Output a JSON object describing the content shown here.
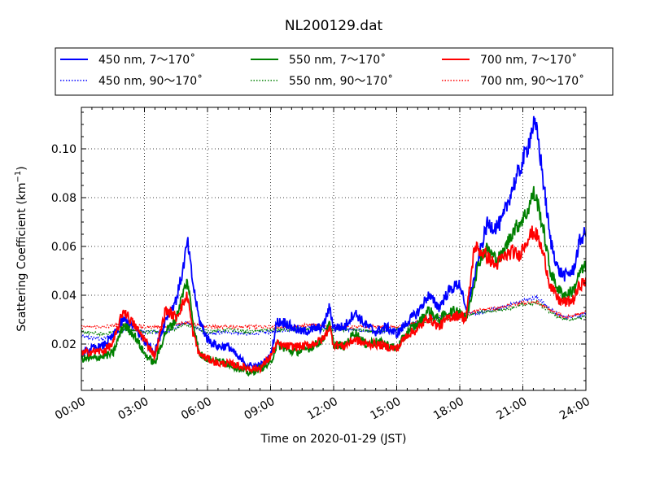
{
  "chart_data": {
    "type": "line",
    "title": "NL200129.dat",
    "xlabel": "Time on 2020-01-29 (JST)",
    "ylabel": "Scattering Coefficient (km",
    "ylabel_sup": "−1",
    "ylabel_close": ")",
    "xlim": [
      0,
      24
    ],
    "ylim": [
      0.001,
      0.117
    ],
    "x_ticks": [
      0,
      3,
      6,
      9,
      12,
      15,
      18,
      21,
      24
    ],
    "x_tick_labels": [
      "00:00",
      "03:00",
      "06:00",
      "09:00",
      "12:00",
      "15:00",
      "18:00",
      "21:00",
      "24:00"
    ],
    "y_ticks": [
      0.02,
      0.04,
      0.06,
      0.08,
      0.1
    ],
    "y_tick_labels": [
      "0.02",
      "0.04",
      "0.06",
      "0.08",
      "0.10"
    ],
    "grid": true,
    "legend_position": "top",
    "series": [
      {
        "name": "450 nm, 7～170˚",
        "color": "#0000ff",
        "style": "solid",
        "points": [
          [
            0,
            0.016
          ],
          [
            0.5,
            0.018
          ],
          [
            1,
            0.019
          ],
          [
            1.5,
            0.023
          ],
          [
            2,
            0.03
          ],
          [
            2.5,
            0.027
          ],
          [
            3,
            0.021
          ],
          [
            3.5,
            0.017
          ],
          [
            4,
            0.03
          ],
          [
            4.5,
            0.038
          ],
          [
            4.8,
            0.049
          ],
          [
            5.05,
            0.062
          ],
          [
            5.3,
            0.045
          ],
          [
            5.6,
            0.03
          ],
          [
            6,
            0.022
          ],
          [
            6.5,
            0.019
          ],
          [
            7,
            0.019
          ],
          [
            7.5,
            0.014
          ],
          [
            8,
            0.011
          ],
          [
            8.5,
            0.011
          ],
          [
            9,
            0.015
          ],
          [
            9.3,
            0.029
          ],
          [
            9.7,
            0.029
          ],
          [
            10,
            0.027
          ],
          [
            10.5,
            0.025
          ],
          [
            11,
            0.026
          ],
          [
            11.5,
            0.027
          ],
          [
            11.8,
            0.035
          ],
          [
            12,
            0.027
          ],
          [
            12.5,
            0.027
          ],
          [
            13,
            0.033
          ],
          [
            13.5,
            0.028
          ],
          [
            14,
            0.025
          ],
          [
            14.5,
            0.027
          ],
          [
            15,
            0.024
          ],
          [
            15.5,
            0.029
          ],
          [
            16,
            0.033
          ],
          [
            16.5,
            0.04
          ],
          [
            17,
            0.035
          ],
          [
            17.5,
            0.042
          ],
          [
            18,
            0.045
          ],
          [
            18.3,
            0.033
          ],
          [
            18.7,
            0.047
          ],
          [
            19,
            0.059
          ],
          [
            19.3,
            0.069
          ],
          [
            19.7,
            0.068
          ],
          [
            20,
            0.07
          ],
          [
            20.5,
            0.084
          ],
          [
            20.8,
            0.09
          ],
          [
            21.2,
            0.1
          ],
          [
            21.5,
            0.11
          ],
          [
            21.7,
            0.106
          ],
          [
            22,
            0.085
          ],
          [
            22.3,
            0.063
          ],
          [
            22.7,
            0.05
          ],
          [
            23,
            0.048
          ],
          [
            23.4,
            0.05
          ],
          [
            23.7,
            0.062
          ],
          [
            24,
            0.066
          ]
        ]
      },
      {
        "name": "450 nm, 90～170˚",
        "color": "#0000ff",
        "style": "dotted",
        "points": [
          [
            0,
            0.023
          ],
          [
            1,
            0.022
          ],
          [
            2,
            0.026
          ],
          [
            3,
            0.025
          ],
          [
            4,
            0.025
          ],
          [
            5,
            0.029
          ],
          [
            6,
            0.024
          ],
          [
            7,
            0.025
          ],
          [
            8,
            0.024
          ],
          [
            9,
            0.025
          ],
          [
            10,
            0.026
          ],
          [
            11,
            0.027
          ],
          [
            12,
            0.026
          ],
          [
            13,
            0.026
          ],
          [
            14,
            0.025
          ],
          [
            15,
            0.026
          ],
          [
            16,
            0.029
          ],
          [
            17,
            0.031
          ],
          [
            18,
            0.032
          ],
          [
            19,
            0.033
          ],
          [
            20,
            0.035
          ],
          [
            21,
            0.038
          ],
          [
            21.7,
            0.039
          ],
          [
            22.5,
            0.033
          ],
          [
            23,
            0.031
          ],
          [
            24,
            0.032
          ]
        ]
      },
      {
        "name": "550 nm, 7～170˚",
        "color": "#008000",
        "style": "solid",
        "points": [
          [
            0,
            0.014
          ],
          [
            0.5,
            0.014
          ],
          [
            1,
            0.015
          ],
          [
            1.5,
            0.016
          ],
          [
            2,
            0.028
          ],
          [
            2.5,
            0.024
          ],
          [
            3,
            0.016
          ],
          [
            3.5,
            0.012
          ],
          [
            4,
            0.025
          ],
          [
            4.5,
            0.03
          ],
          [
            4.8,
            0.04
          ],
          [
            5.05,
            0.046
          ],
          [
            5.3,
            0.03
          ],
          [
            5.6,
            0.016
          ],
          [
            6,
            0.014
          ],
          [
            6.5,
            0.013
          ],
          [
            7,
            0.012
          ],
          [
            7.5,
            0.01
          ],
          [
            8,
            0.008
          ],
          [
            8.5,
            0.01
          ],
          [
            9,
            0.012
          ],
          [
            9.3,
            0.02
          ],
          [
            9.7,
            0.018
          ],
          [
            10,
            0.017
          ],
          [
            10.5,
            0.017
          ],
          [
            11,
            0.019
          ],
          [
            11.5,
            0.022
          ],
          [
            11.8,
            0.028
          ],
          [
            12,
            0.02
          ],
          [
            12.5,
            0.019
          ],
          [
            13,
            0.025
          ],
          [
            13.5,
            0.02
          ],
          [
            14,
            0.021
          ],
          [
            14.5,
            0.02
          ],
          [
            15,
            0.018
          ],
          [
            15.5,
            0.025
          ],
          [
            16,
            0.028
          ],
          [
            16.5,
            0.034
          ],
          [
            17,
            0.03
          ],
          [
            17.5,
            0.033
          ],
          [
            18,
            0.034
          ],
          [
            18.3,
            0.03
          ],
          [
            18.7,
            0.046
          ],
          [
            19,
            0.056
          ],
          [
            19.3,
            0.059
          ],
          [
            19.7,
            0.055
          ],
          [
            20,
            0.056
          ],
          [
            20.5,
            0.066
          ],
          [
            20.8,
            0.069
          ],
          [
            21.2,
            0.074
          ],
          [
            21.5,
            0.082
          ],
          [
            21.7,
            0.078
          ],
          [
            22,
            0.066
          ],
          [
            22.3,
            0.05
          ],
          [
            22.7,
            0.042
          ],
          [
            23,
            0.04
          ],
          [
            23.4,
            0.042
          ],
          [
            23.7,
            0.049
          ],
          [
            24,
            0.052
          ]
        ]
      },
      {
        "name": "550 nm, 90～170˚",
        "color": "#008000",
        "style": "dotted",
        "points": [
          [
            0,
            0.025
          ],
          [
            1,
            0.024
          ],
          [
            2,
            0.026
          ],
          [
            3,
            0.025
          ],
          [
            4,
            0.025
          ],
          [
            5,
            0.028
          ],
          [
            6,
            0.025
          ],
          [
            7,
            0.026
          ],
          [
            8,
            0.025
          ],
          [
            9,
            0.026
          ],
          [
            10,
            0.026
          ],
          [
            11,
            0.026
          ],
          [
            12,
            0.026
          ],
          [
            13,
            0.026
          ],
          [
            14,
            0.025
          ],
          [
            15,
            0.026
          ],
          [
            16,
            0.029
          ],
          [
            17,
            0.03
          ],
          [
            18,
            0.031
          ],
          [
            19,
            0.033
          ],
          [
            20,
            0.034
          ],
          [
            21,
            0.036
          ],
          [
            21.7,
            0.037
          ],
          [
            22.5,
            0.032
          ],
          [
            23,
            0.03
          ],
          [
            24,
            0.031
          ]
        ]
      },
      {
        "name": "700 nm, 7～170˚",
        "color": "#ff0000",
        "style": "solid",
        "points": [
          [
            0,
            0.016
          ],
          [
            0.5,
            0.017
          ],
          [
            1,
            0.017
          ],
          [
            1.5,
            0.02
          ],
          [
            2,
            0.034
          ],
          [
            2.5,
            0.028
          ],
          [
            3,
            0.022
          ],
          [
            3.5,
            0.015
          ],
          [
            4,
            0.034
          ],
          [
            4.5,
            0.031
          ],
          [
            4.8,
            0.036
          ],
          [
            5.05,
            0.04
          ],
          [
            5.3,
            0.025
          ],
          [
            5.6,
            0.016
          ],
          [
            6,
            0.014
          ],
          [
            6.5,
            0.012
          ],
          [
            7,
            0.012
          ],
          [
            7.5,
            0.011
          ],
          [
            8,
            0.01
          ],
          [
            8.5,
            0.01
          ],
          [
            9,
            0.015
          ],
          [
            9.3,
            0.02
          ],
          [
            9.7,
            0.019
          ],
          [
            10,
            0.019
          ],
          [
            10.5,
            0.019
          ],
          [
            11,
            0.02
          ],
          [
            11.5,
            0.022
          ],
          [
            11.8,
            0.027
          ],
          [
            12,
            0.02
          ],
          [
            12.5,
            0.019
          ],
          [
            13,
            0.022
          ],
          [
            13.5,
            0.02
          ],
          [
            14,
            0.02
          ],
          [
            14.5,
            0.019
          ],
          [
            15,
            0.018
          ],
          [
            15.5,
            0.024
          ],
          [
            16,
            0.026
          ],
          [
            16.5,
            0.031
          ],
          [
            17,
            0.027
          ],
          [
            17.5,
            0.031
          ],
          [
            18,
            0.032
          ],
          [
            18.3,
            0.03
          ],
          [
            18.7,
            0.06
          ],
          [
            19,
            0.058
          ],
          [
            19.3,
            0.056
          ],
          [
            19.7,
            0.052
          ],
          [
            20,
            0.055
          ],
          [
            20.5,
            0.058
          ],
          [
            20.8,
            0.056
          ],
          [
            21.2,
            0.063
          ],
          [
            21.5,
            0.066
          ],
          [
            21.7,
            0.064
          ],
          [
            22,
            0.056
          ],
          [
            22.3,
            0.044
          ],
          [
            22.7,
            0.038
          ],
          [
            23,
            0.037
          ],
          [
            23.4,
            0.038
          ],
          [
            23.7,
            0.044
          ],
          [
            24,
            0.046
          ]
        ]
      },
      {
        "name": "700 nm, 90～170˚",
        "color": "#ff0000",
        "style": "dotted",
        "points": [
          [
            0,
            0.027
          ],
          [
            1,
            0.027
          ],
          [
            2,
            0.028
          ],
          [
            3,
            0.027
          ],
          [
            4,
            0.027
          ],
          [
            5,
            0.029
          ],
          [
            6,
            0.027
          ],
          [
            7,
            0.027
          ],
          [
            8,
            0.027
          ],
          [
            9,
            0.027
          ],
          [
            10,
            0.027
          ],
          [
            11,
            0.028
          ],
          [
            12,
            0.027
          ],
          [
            13,
            0.027
          ],
          [
            14,
            0.027
          ],
          [
            15,
            0.027
          ],
          [
            16,
            0.029
          ],
          [
            17,
            0.031
          ],
          [
            18,
            0.032
          ],
          [
            19,
            0.034
          ],
          [
            20,
            0.035
          ],
          [
            21,
            0.037
          ],
          [
            21.7,
            0.037
          ],
          [
            22.5,
            0.033
          ],
          [
            23,
            0.031
          ],
          [
            24,
            0.033
          ]
        ]
      }
    ]
  }
}
